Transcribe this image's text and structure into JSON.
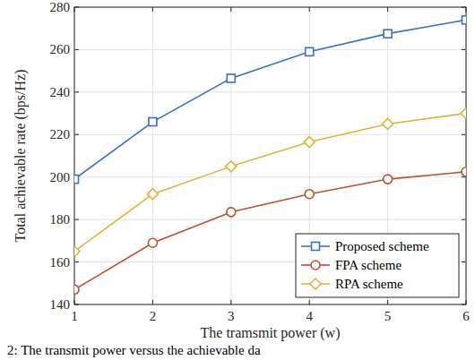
{
  "chart_data": {
    "type": "line",
    "x_label": "The tramsmit power (w)",
    "y_label": "Total achievable rate (bps/Hz)",
    "caption": "2: The transmit power versus the achievable da",
    "x": [
      1,
      2,
      3,
      4,
      5,
      6
    ],
    "series": [
      {
        "name": "Proposed scheme",
        "color": "#3c6fc8",
        "marker": "square",
        "values": [
          199,
          226,
          246.5,
          259,
          267.5,
          274
        ]
      },
      {
        "name": "FPA scheme",
        "color": "#c0502a",
        "marker": "circle",
        "values": [
          147,
          169,
          183.5,
          192,
          199,
          202.5
        ]
      },
      {
        "name": "RPA scheme",
        "color": "#e3b23c",
        "marker": "diamond",
        "values": [
          165,
          192,
          205,
          216.5,
          225,
          230
        ]
      }
    ],
    "xlim": [
      1,
      6
    ],
    "xticks": [
      1,
      2,
      3,
      4,
      5,
      6
    ],
    "ylim": [
      140,
      280
    ],
    "yticks": [
      140,
      160,
      180,
      200,
      220,
      240,
      260,
      280
    ],
    "grid": true,
    "legend": "lower right"
  }
}
